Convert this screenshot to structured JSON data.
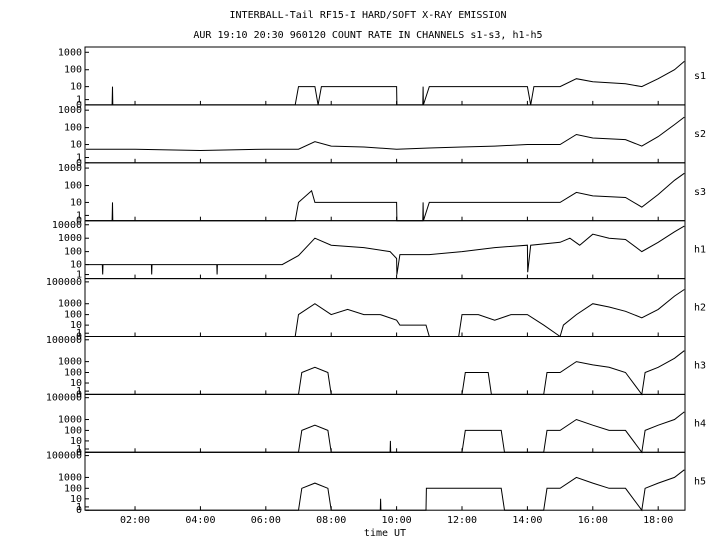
{
  "figure": {
    "title": "INTERBALL-Tail RF15-I HARD/SOFT X-RAY EMISSION",
    "subtitle": "AUR 19:10 20:30 960120  COUNT RATE IN CHANNELS s1-s3, h1-h5",
    "xlabel": "time UT",
    "xlim": [
      0.47,
      18.82
    ],
    "xticks": [
      {
        "value": 2,
        "label": "02:00"
      },
      {
        "value": 4,
        "label": "04:00"
      },
      {
        "value": 6,
        "label": "06:00"
      },
      {
        "value": 8,
        "label": "08:00"
      },
      {
        "value": 10,
        "label": "10:00"
      },
      {
        "value": 12,
        "label": "12:00"
      },
      {
        "value": 14,
        "label": "14:00"
      },
      {
        "value": 16,
        "label": "16:00"
      },
      {
        "value": 18,
        "label": "18:00"
      }
    ]
  },
  "chart_data": [
    {
      "type": "line",
      "name": "s1",
      "yscale": "log1p",
      "color": "#000000",
      "ylim": [
        0,
        2000
      ],
      "yticks": [
        0,
        1,
        10,
        100,
        1000
      ],
      "x": [
        0.5,
        1.3,
        1.31,
        1.32,
        3,
        5,
        6.9,
        7.0,
        7.5,
        7.6,
        7.7,
        8.5,
        9,
        10,
        10.01,
        10.8,
        10.81,
        10.82,
        11,
        12,
        13,
        14,
        14.1,
        14.2,
        15,
        15.5,
        16,
        17,
        17.5,
        18,
        18.5,
        18.8
      ],
      "values": [
        0,
        0,
        10,
        0,
        0,
        0,
        0,
        10,
        10,
        0,
        10,
        10,
        10,
        10,
        0,
        0,
        10,
        0,
        10,
        10,
        10,
        10,
        0,
        10,
        10,
        30,
        20,
        15,
        10,
        30,
        100,
        300
      ]
    },
    {
      "type": "line",
      "name": "s2",
      "yscale": "log1p",
      "color": "#000000",
      "ylim": [
        0,
        2000
      ],
      "yticks": [
        0,
        1,
        10,
        100,
        1000
      ],
      "x": [
        0.5,
        2,
        4,
        6,
        7,
        7.5,
        8,
        9,
        10,
        11,
        12,
        13,
        14,
        15,
        15.5,
        16,
        17,
        17.5,
        18,
        18.5,
        18.8
      ],
      "values": [
        5,
        5,
        4,
        5,
        5,
        15,
        8,
        7,
        5,
        6,
        7,
        8,
        10,
        10,
        40,
        25,
        20,
        8,
        30,
        150,
        400
      ]
    },
    {
      "type": "line",
      "name": "s3",
      "yscale": "log1p",
      "color": "#000000",
      "ylim": [
        0,
        2000
      ],
      "yticks": [
        0,
        1,
        10,
        100,
        1000
      ],
      "x": [
        0.5,
        1.3,
        1.31,
        1.32,
        6.9,
        7.0,
        7.4,
        7.5,
        8,
        9,
        10,
        10.01,
        10.8,
        10.81,
        10.82,
        11,
        12,
        13,
        14,
        15,
        15.5,
        16,
        17,
        17.5,
        18,
        18.5,
        18.8
      ],
      "values": [
        0,
        0,
        10,
        0,
        0,
        10,
        50,
        10,
        10,
        10,
        10,
        0,
        0,
        10,
        0,
        10,
        10,
        10,
        10,
        10,
        40,
        25,
        20,
        5,
        30,
        200,
        500
      ]
    },
    {
      "type": "line",
      "name": "h1",
      "yscale": "log1p",
      "color": "#000000",
      "ylim": [
        0,
        20000
      ],
      "yticks": [
        1,
        10,
        100,
        1000,
        10000
      ],
      "x": [
        0.5,
        1,
        1.01,
        1.02,
        2,
        2.5,
        2.51,
        2.52,
        3.5,
        4.5,
        4.51,
        4.52,
        5.5,
        6.5,
        7,
        7.5,
        8,
        9,
        9.8,
        10,
        10.01,
        10.1,
        11,
        12,
        13,
        14,
        14.01,
        14.1,
        15,
        15.3,
        15.6,
        16,
        16.5,
        17,
        17.5,
        18,
        18.5,
        18.8
      ],
      "values": [
        10,
        10,
        1,
        10,
        10,
        10,
        1,
        10,
        10,
        10,
        1,
        10,
        10,
        10,
        50,
        1000,
        300,
        200,
        100,
        30,
        1,
        60,
        60,
        100,
        200,
        300,
        2,
        300,
        500,
        1000,
        300,
        2000,
        1000,
        800,
        100,
        500,
        3000,
        8000
      ]
    },
    {
      "type": "line",
      "name": "h2",
      "yscale": "log1p",
      "color": "#000000",
      "ylim": [
        0,
        200000
      ],
      "yticks": [
        0,
        1,
        10,
        100,
        1000,
        100000
      ],
      "x": [
        0.5,
        6.9,
        7,
        7.5,
        8,
        8.5,
        9,
        9.5,
        10,
        10.1,
        10.9,
        11,
        11.9,
        12,
        12.5,
        13,
        13.5,
        14,
        14.5,
        15,
        15.1,
        15.5,
        16,
        16.5,
        17,
        17.5,
        18,
        18.5,
        18.8
      ],
      "values": [
        0,
        0,
        100,
        1000,
        100,
        300,
        100,
        100,
        30,
        10,
        10,
        0,
        0,
        100,
        100,
        30,
        100,
        100,
        10,
        0,
        10,
        100,
        1000,
        500,
        200,
        50,
        300,
        5000,
        20000
      ]
    },
    {
      "type": "line",
      "name": "h3",
      "yscale": "log1p",
      "color": "#000000",
      "ylim": [
        0,
        200000
      ],
      "yticks": [
        0,
        1,
        10,
        100,
        1000,
        100000
      ],
      "x": [
        0.5,
        7.0,
        7.1,
        7.5,
        7.9,
        8.0,
        12.0,
        12.1,
        12.5,
        12.8,
        12.9,
        14.5,
        14.6,
        15,
        15.5,
        16,
        16.5,
        17,
        17.5,
        17.6,
        18,
        18.5,
        18.8
      ],
      "values": [
        0,
        0,
        100,
        300,
        100,
        0,
        0,
        100,
        100,
        100,
        0,
        0,
        100,
        100,
        1000,
        500,
        300,
        100,
        0,
        100,
        300,
        2000,
        10000
      ]
    },
    {
      "type": "line",
      "name": "h4",
      "yscale": "log1p",
      "color": "#000000",
      "ylim": [
        0,
        200000
      ],
      "yticks": [
        0,
        1,
        10,
        100,
        1000,
        100000
      ],
      "x": [
        0.5,
        7.0,
        7.1,
        7.5,
        7.9,
        8.0,
        9.8,
        9.81,
        9.82,
        12.0,
        12.1,
        12.5,
        13.2,
        13.3,
        14.5,
        14.6,
        15,
        15.5,
        16,
        16.5,
        17,
        17.5,
        17.6,
        18,
        18.5,
        18.8
      ],
      "values": [
        0,
        0,
        100,
        300,
        100,
        0,
        0,
        10,
        0,
        0,
        100,
        100,
        100,
        0,
        0,
        100,
        100,
        1000,
        300,
        100,
        100,
        0,
        100,
        300,
        1000,
        5000
      ]
    },
    {
      "type": "line",
      "name": "h5",
      "yscale": "log1p",
      "color": "#000000",
      "ylim": [
        0,
        200000
      ],
      "yticks": [
        0,
        1,
        10,
        100,
        1000,
        100000
      ],
      "x": [
        0.5,
        7.0,
        7.1,
        7.5,
        7.9,
        8.0,
        9.5,
        9.51,
        9.52,
        10.9,
        10.91,
        12.1,
        12.5,
        13.2,
        13.3,
        14.5,
        14.6,
        15,
        15.5,
        16,
        16.5,
        17,
        17.5,
        17.6,
        18,
        18.5,
        18.8
      ],
      "values": [
        0,
        0,
        100,
        300,
        100,
        0,
        0,
        10,
        0,
        0,
        100,
        100,
        100,
        100,
        0,
        0,
        100,
        100,
        1000,
        300,
        100,
        100,
        0,
        100,
        300,
        1000,
        5000
      ]
    }
  ]
}
